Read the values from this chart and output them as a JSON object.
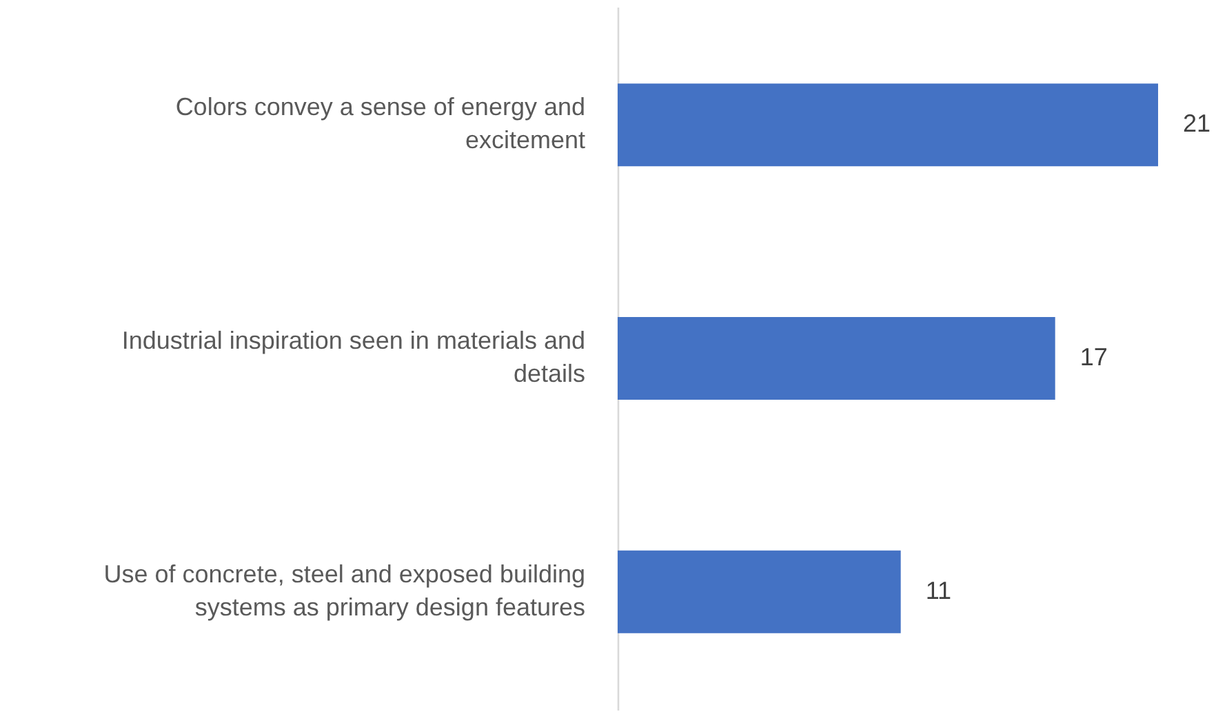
{
  "chart_data": {
    "type": "bar",
    "orientation": "horizontal",
    "categories": [
      "Colors convey a sense of energy and excitement",
      "Industrial inspiration seen in materials and details",
      "Use of concrete, steel and exposed building systems as primary design features"
    ],
    "values": [
      21,
      17,
      11
    ],
    "color": "#4472c4",
    "data_labels": true
  }
}
